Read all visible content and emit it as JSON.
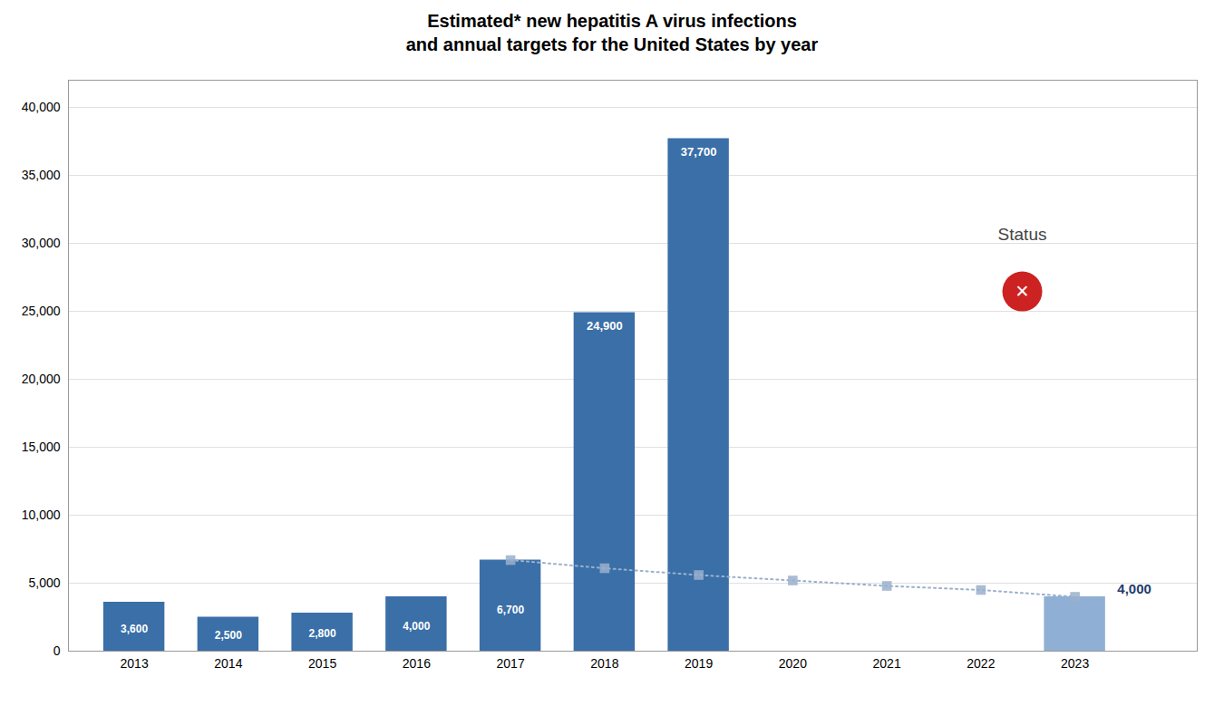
{
  "chart_data": {
    "type": "bar",
    "title": "Estimated* new hepatitis A virus infections\nand annual targets for the United States by year",
    "x": [
      2013,
      2014,
      2015,
      2016,
      2017,
      2018,
      2019,
      2020,
      2021,
      2022,
      2023
    ],
    "series": [
      {
        "type": "bar",
        "values": [
          3600,
          2500,
          2800,
          4000,
          6700,
          24900,
          37700,
          null,
          null,
          null,
          4000
        ],
        "value_labels": [
          "3,600",
          "2,500",
          "2,800",
          "4,000",
          "6,700",
          "24,900",
          "37,700",
          null,
          null,
          null,
          "4,000"
        ],
        "colors": [
          "#3a6fa8",
          "#3a6fa8",
          "#3a6fa8",
          "#3a6fa8",
          "#3a6fa8",
          "#3a6fa8",
          "#3a6fa8",
          null,
          null,
          null,
          "#8fafd4"
        ]
      },
      {
        "type": "line",
        "x": [
          2017,
          2018,
          2019,
          2020,
          2021,
          2022,
          2023
        ],
        "values": [
          6700,
          6100,
          5600,
          5200,
          4800,
          4500,
          4000
        ],
        "color": "#9ab0cc",
        "marker": "square",
        "line_style": "dotted"
      }
    ],
    "xlim": [
      2012.3,
      2024.3
    ],
    "xticks": [
      2013,
      2014,
      2015,
      2016,
      2017,
      2018,
      2019,
      2020,
      2021,
      2022,
      2023
    ],
    "ylim": [
      0,
      42000
    ],
    "yticks": [
      0,
      {
        "value": 5000,
        "label": "5,000"
      },
      {
        "value": 10000,
        "label": "10,000"
      },
      {
        "value": 15000,
        "label": "15,000"
      },
      {
        "value": 20000,
        "label": "20,000"
      },
      {
        "value": 25000,
        "label": "25,000"
      },
      {
        "value": 30000,
        "label": "30,000"
      },
      {
        "value": 35000,
        "label": "35,000"
      },
      {
        "value": 40000,
        "label": "40,000"
      }
    ],
    "grid": true,
    "data_labels": true,
    "annotations": [
      {
        "text": "Status"
      },
      {
        "text": "✕",
        "color": "#cc2222"
      }
    ]
  }
}
